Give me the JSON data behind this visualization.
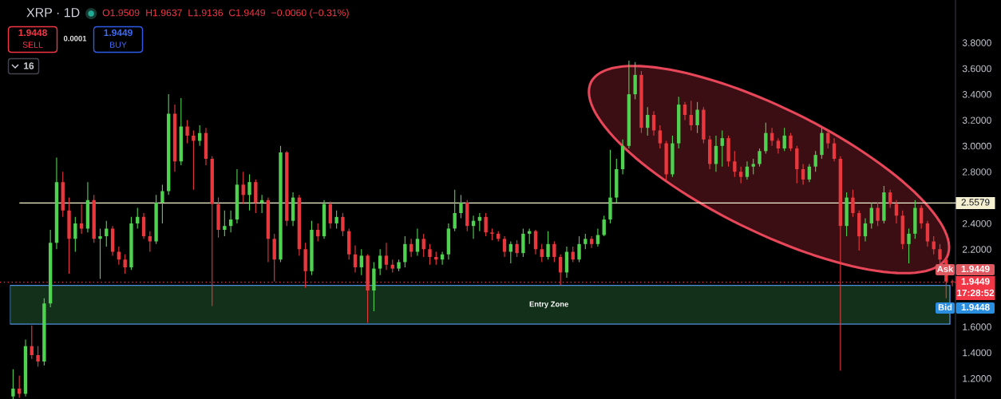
{
  "chart_data": {
    "type": "candlestick",
    "title": "XRP · 1D",
    "categories": [
      null,
      null,
      null,
      null,
      null,
      null,
      null,
      null,
      null,
      null,
      null,
      null,
      null,
      null,
      null,
      null,
      null,
      null,
      null,
      null,
      null,
      null,
      null,
      null,
      null,
      null,
      null,
      null,
      null,
      null,
      null,
      null,
      null,
      null,
      null,
      null,
      null,
      null,
      null,
      null,
      null,
      null,
      null,
      null,
      null,
      null,
      null,
      null,
      null,
      null,
      null,
      null,
      null,
      null,
      null,
      null,
      null,
      null,
      null,
      null,
      null,
      null,
      null,
      null,
      null,
      null,
      null,
      null,
      null,
      null,
      null,
      null,
      null,
      null,
      null,
      null,
      null,
      null,
      null,
      null,
      null,
      null,
      null,
      null,
      null,
      null,
      null,
      null,
      null,
      null,
      null,
      null,
      null,
      null,
      null,
      null,
      null,
      null,
      null,
      null,
      null,
      null,
      null,
      null,
      null,
      null,
      null,
      null,
      null,
      null,
      null,
      null,
      null,
      null,
      null,
      null,
      null,
      null,
      null,
      null,
      null,
      null,
      null,
      null,
      null,
      null,
      null,
      null,
      null,
      null,
      null,
      null,
      null,
      null,
      null,
      null,
      null,
      null,
      null,
      null,
      null,
      null,
      null,
      null,
      null,
      null,
      null,
      null,
      null,
      null,
      null,
      null
    ],
    "ohlc": [
      [
        1.06,
        1.27,
        1.04,
        1.12
      ],
      [
        1.12,
        1.22,
        1.05,
        1.08
      ],
      [
        1.08,
        1.5,
        1.06,
        1.45
      ],
      [
        1.45,
        1.61,
        1.35,
        1.38
      ],
      [
        1.38,
        1.45,
        1.29,
        1.33
      ],
      [
        1.33,
        1.82,
        1.3,
        1.78
      ],
      [
        1.78,
        2.35,
        1.75,
        2.25
      ],
      [
        2.25,
        2.91,
        2.2,
        2.72
      ],
      [
        2.72,
        2.8,
        2.45,
        2.5
      ],
      [
        2.5,
        2.6,
        2.01,
        2.28
      ],
      [
        2.28,
        2.45,
        2.18,
        2.4
      ],
      [
        2.4,
        2.55,
        2.32,
        2.36
      ],
      [
        2.36,
        2.72,
        2.33,
        2.58
      ],
      [
        2.58,
        2.62,
        2.25,
        2.28
      ],
      [
        2.28,
        2.36,
        1.97,
        2.3
      ],
      [
        2.3,
        2.42,
        2.22,
        2.36
      ],
      [
        2.36,
        2.38,
        2.15,
        2.18
      ],
      [
        2.18,
        2.22,
        2.08,
        2.12
      ],
      [
        2.12,
        2.16,
        2.01,
        2.06
      ],
      [
        2.06,
        2.45,
        2.04,
        2.4
      ],
      [
        2.4,
        2.52,
        2.36,
        2.45
      ],
      [
        2.45,
        2.48,
        2.28,
        2.3
      ],
      [
        2.3,
        2.34,
        2.18,
        2.26
      ],
      [
        2.26,
        2.62,
        2.24,
        2.56
      ],
      [
        2.56,
        2.7,
        2.4,
        2.65
      ],
      [
        2.65,
        3.4,
        2.62,
        3.25
      ],
      [
        3.25,
        3.32,
        2.8,
        2.88
      ],
      [
        2.88,
        3.37,
        2.85,
        3.15
      ],
      [
        3.15,
        3.2,
        3.02,
        3.08
      ],
      [
        3.08,
        3.12,
        2.66,
        3.04
      ],
      [
        3.04,
        3.16,
        3.0,
        3.1
      ],
      [
        3.1,
        3.14,
        2.85,
        2.9
      ],
      [
        2.9,
        2.92,
        1.76,
        2.55
      ],
      [
        2.55,
        2.6,
        2.29,
        2.35
      ],
      [
        2.35,
        2.5,
        2.3,
        2.38
      ],
      [
        2.38,
        2.5,
        2.33,
        2.43
      ],
      [
        2.43,
        2.82,
        2.4,
        2.7
      ],
      [
        2.7,
        2.8,
        2.55,
        2.62
      ],
      [
        2.62,
        2.78,
        2.5,
        2.72
      ],
      [
        2.72,
        2.74,
        2.48,
        2.56
      ],
      [
        2.56,
        2.62,
        2.48,
        2.58
      ],
      [
        2.58,
        2.6,
        2.1,
        2.28
      ],
      [
        2.28,
        2.32,
        1.95,
        2.12
      ],
      [
        2.12,
        3.0,
        2.1,
        2.95
      ],
      [
        2.95,
        2.96,
        2.38,
        2.42
      ],
      [
        2.42,
        2.64,
        2.38,
        2.6
      ],
      [
        2.6,
        2.62,
        2.15,
        2.2
      ],
      [
        2.2,
        2.25,
        1.9,
        2.03
      ],
      [
        2.03,
        2.42,
        2.0,
        2.35
      ],
      [
        2.35,
        2.4,
        2.26,
        2.3
      ],
      [
        2.3,
        2.58,
        2.28,
        2.55
      ],
      [
        2.55,
        2.57,
        2.36,
        2.4
      ],
      [
        2.4,
        2.5,
        2.36,
        2.45
      ],
      [
        2.45,
        2.48,
        2.3,
        2.34
      ],
      [
        2.34,
        2.36,
        2.12,
        2.16
      ],
      [
        2.16,
        2.23,
        2.02,
        2.06
      ],
      [
        2.06,
        2.2,
        2.0,
        2.15
      ],
      [
        2.15,
        2.16,
        1.63,
        1.88
      ],
      [
        1.88,
        2.1,
        1.72,
        2.05
      ],
      [
        2.05,
        2.2,
        2.0,
        2.15
      ],
      [
        2.15,
        2.25,
        2.04,
        2.08
      ],
      [
        2.08,
        2.12,
        2.02,
        2.05
      ],
      [
        2.05,
        2.12,
        2.03,
        2.1
      ],
      [
        2.1,
        2.3,
        2.06,
        2.24
      ],
      [
        2.24,
        2.28,
        2.14,
        2.18
      ],
      [
        2.18,
        2.36,
        2.15,
        2.28
      ],
      [
        2.28,
        2.32,
        2.14,
        2.2
      ],
      [
        2.2,
        2.24,
        2.08,
        2.14
      ],
      [
        2.14,
        2.18,
        2.08,
        2.12
      ],
      [
        2.12,
        2.18,
        2.08,
        2.16
      ],
      [
        2.16,
        2.4,
        2.12,
        2.36
      ],
      [
        2.36,
        2.66,
        2.34,
        2.48
      ],
      [
        2.48,
        2.62,
        2.44,
        2.56
      ],
      [
        2.56,
        2.58,
        2.34,
        2.38
      ],
      [
        2.38,
        2.46,
        2.28,
        2.42
      ],
      [
        2.42,
        2.48,
        2.34,
        2.45
      ],
      [
        2.45,
        2.48,
        2.3,
        2.33
      ],
      [
        2.33,
        2.36,
        2.27,
        2.32
      ],
      [
        2.32,
        2.34,
        2.26,
        2.28
      ],
      [
        2.28,
        2.3,
        2.14,
        2.18
      ],
      [
        2.18,
        2.26,
        2.09,
        2.24
      ],
      [
        2.24,
        2.27,
        2.14,
        2.17
      ],
      [
        2.17,
        2.36,
        2.14,
        2.32
      ],
      [
        2.32,
        2.36,
        2.24,
        2.34
      ],
      [
        2.34,
        2.35,
        2.16,
        2.2
      ],
      [
        2.2,
        2.24,
        2.1,
        2.14
      ],
      [
        2.14,
        2.34,
        2.12,
        2.24
      ],
      [
        2.24,
        2.26,
        2.1,
        2.14
      ],
      [
        2.14,
        2.16,
        1.92,
        2.02
      ],
      [
        2.02,
        2.22,
        1.98,
        2.18
      ],
      [
        2.18,
        2.22,
        2.1,
        2.12
      ],
      [
        2.12,
        2.3,
        2.1,
        2.24
      ],
      [
        2.24,
        2.32,
        2.2,
        2.28
      ],
      [
        2.28,
        2.3,
        2.21,
        2.24
      ],
      [
        2.24,
        2.36,
        2.22,
        2.31
      ],
      [
        2.31,
        2.46,
        2.3,
        2.43
      ],
      [
        2.43,
        2.97,
        2.4,
        2.6
      ],
      [
        2.6,
        2.9,
        2.56,
        2.82
      ],
      [
        2.82,
        3.05,
        2.78,
        3.0
      ],
      [
        3.0,
        3.66,
        2.98,
        3.4
      ],
      [
        3.4,
        3.65,
        3.36,
        3.55
      ],
      [
        3.55,
        3.58,
        3.1,
        3.14
      ],
      [
        3.14,
        3.3,
        3.08,
        3.24
      ],
      [
        3.24,
        3.27,
        3.08,
        3.12
      ],
      [
        3.12,
        3.16,
        2.98,
        3.02
      ],
      [
        3.02,
        3.04,
        2.74,
        2.78
      ],
      [
        2.78,
        3.08,
        2.76,
        3.02
      ],
      [
        3.02,
        3.38,
        2.98,
        3.32
      ],
      [
        3.32,
        3.34,
        3.2,
        3.24
      ],
      [
        3.24,
        3.35,
        3.12,
        3.16
      ],
      [
        3.16,
        3.34,
        3.1,
        3.28
      ],
      [
        3.28,
        3.3,
        3.02,
        3.05
      ],
      [
        3.05,
        3.08,
        2.82,
        2.86
      ],
      [
        2.86,
        3.08,
        2.8,
        3.0
      ],
      [
        3.0,
        3.12,
        2.84,
        3.06
      ],
      [
        3.06,
        3.08,
        2.84,
        2.88
      ],
      [
        2.88,
        2.96,
        2.76,
        2.8
      ],
      [
        2.8,
        2.84,
        2.71,
        2.76
      ],
      [
        2.76,
        2.88,
        2.74,
        2.84
      ],
      [
        2.84,
        2.9,
        2.78,
        2.86
      ],
      [
        2.86,
        2.98,
        2.84,
        2.96
      ],
      [
        2.96,
        3.18,
        2.94,
        3.1
      ],
      [
        3.1,
        3.14,
        3.0,
        3.04
      ],
      [
        3.04,
        3.06,
        2.94,
        2.98
      ],
      [
        2.98,
        3.14,
        2.96,
        3.08
      ],
      [
        3.08,
        3.1,
        2.96,
        2.98
      ],
      [
        2.98,
        3.0,
        2.71,
        2.82
      ],
      [
        2.82,
        2.86,
        2.7,
        2.74
      ],
      [
        2.74,
        2.86,
        2.72,
        2.84
      ],
      [
        2.84,
        2.96,
        2.8,
        2.93
      ],
      [
        2.93,
        3.14,
        2.9,
        3.1
      ],
      [
        3.1,
        3.12,
        2.98,
        3.02
      ],
      [
        3.02,
        3.06,
        2.88,
        2.9
      ],
      [
        2.9,
        2.92,
        1.26,
        2.38
      ],
      [
        2.38,
        2.64,
        2.3,
        2.6
      ],
      [
        2.6,
        2.66,
        2.45,
        2.48
      ],
      [
        2.48,
        2.5,
        2.19,
        2.3
      ],
      [
        2.3,
        2.44,
        2.26,
        2.4
      ],
      [
        2.4,
        2.56,
        2.36,
        2.52
      ],
      [
        2.52,
        2.56,
        2.38,
        2.42
      ],
      [
        2.42,
        2.69,
        2.4,
        2.64
      ],
      [
        2.64,
        2.66,
        2.52,
        2.55
      ],
      [
        2.55,
        2.58,
        2.4,
        2.46
      ],
      [
        2.46,
        2.5,
        2.2,
        2.24
      ],
      [
        2.24,
        2.36,
        2.09,
        2.32
      ],
      [
        2.32,
        2.58,
        2.28,
        2.52
      ],
      [
        2.52,
        2.54,
        2.36,
        2.4
      ],
      [
        2.4,
        2.42,
        2.22,
        2.26
      ],
      [
        2.26,
        2.3,
        2.16,
        2.2
      ],
      [
        2.2,
        2.24,
        2.08,
        2.12
      ],
      [
        2.12,
        2.14,
        1.82,
        1.95
      ],
      [
        1.9509,
        1.9637,
        1.9136,
        1.9449
      ]
    ],
    "colors": [
      "#4fd24f",
      "#e8383d",
      "#4fd24f",
      "#e8383d",
      "#e8383d",
      "#4fd24f",
      "#4fd24f",
      "#4fd24f",
      "#e8383d",
      "#e8383d",
      "#4fd24f",
      "#e8383d",
      "#4fd24f",
      "#e8383d",
      "#4fd24f",
      "#4fd24f",
      "#e8383d",
      "#e8383d",
      "#e8383d",
      "#4fd24f",
      "#4fd24f",
      "#e8383d",
      "#e8383d",
      "#4fd24f",
      "#4fd24f",
      "#4fd24f",
      "#e8383d",
      "#4fd24f",
      "#e8383d",
      "#e8383d",
      "#4fd24f",
      "#e8383d",
      "#e8383d",
      "#e8383d",
      "#4fd24f",
      "#4fd24f",
      "#4fd24f",
      "#e8383d",
      "#4fd24f",
      "#e8383d",
      "#4fd24f",
      "#e8383d",
      "#e8383d",
      "#4fd24f",
      "#e8383d",
      "#4fd24f",
      "#e8383d",
      "#e8383d",
      "#4fd24f",
      "#e8383d",
      "#4fd24f",
      "#e8383d",
      "#4fd24f",
      "#e8383d",
      "#e8383d",
      "#e8383d",
      "#4fd24f",
      "#e8383d",
      "#4fd24f",
      "#4fd24f",
      "#e8383d",
      "#e8383d",
      "#4fd24f",
      "#4fd24f",
      "#e8383d",
      "#4fd24f",
      "#e8383d",
      "#e8383d",
      "#e8383d",
      "#4fd24f",
      "#4fd24f",
      "#4fd24f",
      "#4fd24f",
      "#e8383d",
      "#4fd24f",
      "#4fd24f",
      "#e8383d",
      "#e8383d",
      "#e8383d",
      "#e8383d",
      "#4fd24f",
      "#e8383d",
      "#4fd24f",
      "#4fd24f",
      "#e8383d",
      "#e8383d",
      "#4fd24f",
      "#e8383d",
      "#e8383d",
      "#4fd24f",
      "#e8383d",
      "#4fd24f",
      "#4fd24f",
      "#e8383d",
      "#4fd24f",
      "#4fd24f",
      "#4fd24f",
      "#4fd24f",
      "#4fd24f",
      "#4fd24f",
      "#4fd24f",
      "#e8383d",
      "#4fd24f",
      "#e8383d",
      "#e8383d",
      "#e8383d",
      "#4fd24f",
      "#4fd24f",
      "#e8383d",
      "#e8383d",
      "#4fd24f",
      "#e8383d",
      "#e8383d",
      "#4fd24f",
      "#4fd24f",
      "#e8383d",
      "#e8383d",
      "#e8383d",
      "#4fd24f",
      "#4fd24f",
      "#4fd24f",
      "#4fd24f",
      "#e8383d",
      "#e8383d",
      "#4fd24f",
      "#e8383d",
      "#e8383d",
      "#e8383d",
      "#4fd24f",
      "#4fd24f",
      "#4fd24f",
      "#e8383d",
      "#e8383d",
      "#e8383d",
      "#4fd24f",
      "#e8383d",
      "#e8383d",
      "#4fd24f",
      "#4fd24f",
      "#e8383d",
      "#4fd24f",
      "#e8383d",
      "#e8383d",
      "#e8383d",
      "#4fd24f",
      "#4fd24f",
      "#e8383d",
      "#e8383d",
      "#e8383d",
      "#e8383d",
      "#e8383d",
      "#e8383d"
    ],
    "ylim": [
      1.04,
      4.13
    ],
    "yticks": [
      {
        "value": 1.2,
        "label": "1.2000"
      },
      {
        "value": 1.4,
        "label": "1.4000"
      },
      {
        "value": 1.6,
        "label": "1.6000"
      },
      {
        "value": 2.2,
        "label": "2.2000"
      },
      {
        "value": 2.4,
        "label": "2.4000"
      },
      {
        "value": 2.8,
        "label": "2.8000"
      },
      {
        "value": 3.0,
        "label": "3.0000"
      },
      {
        "value": 3.2,
        "label": "3.2000"
      },
      {
        "value": 3.4,
        "label": "3.4000"
      },
      {
        "value": 3.6,
        "label": "3.6000"
      },
      {
        "value": 3.8,
        "label": "3.8000"
      }
    ],
    "tick_labels": "y",
    "ref_lines": [
      {
        "axis": "y",
        "value": 2.5579,
        "label": "2.5579",
        "color": "#f5f0cf",
        "line_style": "solid"
      },
      {
        "axis": "y",
        "value": 1.9449,
        "label": "1.9449",
        "color": "#f23645",
        "line_style": "dotted"
      }
    ],
    "bands": [
      {
        "axis": "y",
        "from": 1.62,
        "to": 1.92,
        "label": "Entry Zone",
        "color": "#13301a"
      }
    ],
    "annotations": [
      "O1.9509",
      "H1.9637",
      "L1.9136",
      "C1.9449",
      "−0.0060 (−0.31%)",
      "1.9448",
      "SELL",
      "0.0001",
      "1.9449",
      "BUY",
      "16",
      "Ask",
      "1.9449",
      "17:28:52",
      "Bid",
      "1.9448"
    ]
  }
}
